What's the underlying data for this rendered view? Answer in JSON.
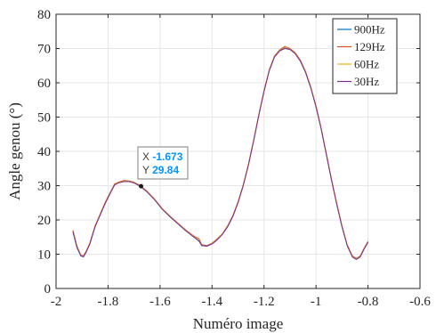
{
  "chart_data": {
    "type": "line",
    "title": "",
    "xlabel": "Numéro image",
    "ylabel": "Angle genou (°)",
    "xlim": [
      -2,
      -0.6
    ],
    "ylim": [
      0,
      80
    ],
    "x_ticks": [
      -2,
      -1.8,
      -1.6,
      -1.4,
      -1.2,
      -1,
      -0.8,
      -0.6
    ],
    "x_tick_labels": [
      "-2",
      "-1.8",
      "-1.6",
      "-1.4",
      "-1.2",
      "-1",
      "-0.8",
      "-0.6"
    ],
    "y_ticks": [
      0,
      10,
      20,
      30,
      40,
      50,
      60,
      70,
      80
    ],
    "y_tick_labels": [
      "0",
      "10",
      "20",
      "30",
      "40",
      "50",
      "60",
      "70",
      "80"
    ],
    "grid": true,
    "legend_position": "top-right",
    "series": [
      {
        "name": "900Hz",
        "color": "#0072BD",
        "points": [
          [
            -1.935,
            16.5
          ],
          [
            -1.92,
            12
          ],
          [
            -1.905,
            9.5
          ],
          [
            -1.895,
            9.2
          ],
          [
            -1.885,
            10.5
          ],
          [
            -1.87,
            13
          ],
          [
            -1.85,
            18
          ],
          [
            -1.83,
            21.5
          ],
          [
            -1.81,
            25
          ],
          [
            -1.79,
            28
          ],
          [
            -1.775,
            30.2
          ],
          [
            -1.76,
            30.8
          ],
          [
            -1.74,
            31.2
          ],
          [
            -1.72,
            31.2
          ],
          [
            -1.7,
            30.8
          ],
          [
            -1.68,
            30
          ],
          [
            -1.673,
            29.84
          ],
          [
            -1.65,
            28.2
          ],
          [
            -1.62,
            25.8
          ],
          [
            -1.59,
            23
          ],
          [
            -1.56,
            20.8
          ],
          [
            -1.53,
            18.8
          ],
          [
            -1.5,
            16.8
          ],
          [
            -1.47,
            15
          ],
          [
            -1.45,
            13.8
          ],
          [
            -1.44,
            12.5
          ],
          [
            -1.42,
            12.3
          ],
          [
            -1.4,
            13
          ],
          [
            -1.38,
            14.2
          ],
          [
            -1.36,
            15.8
          ],
          [
            -1.34,
            18
          ],
          [
            -1.32,
            21
          ],
          [
            -1.3,
            25
          ],
          [
            -1.28,
            30
          ],
          [
            -1.26,
            36
          ],
          [
            -1.24,
            43
          ],
          [
            -1.22,
            50.5
          ],
          [
            -1.2,
            57.5
          ],
          [
            -1.18,
            63.5
          ],
          [
            -1.16,
            67.5
          ],
          [
            -1.14,
            69.3
          ],
          [
            -1.12,
            70
          ],
          [
            -1.1,
            69.7
          ],
          [
            -1.08,
            68.5
          ],
          [
            -1.06,
            66.3
          ],
          [
            -1.04,
            63
          ],
          [
            -1.02,
            58.5
          ],
          [
            -1.0,
            53
          ],
          [
            -0.98,
            46.5
          ],
          [
            -0.96,
            39
          ],
          [
            -0.94,
            31.5
          ],
          [
            -0.92,
            24.5
          ],
          [
            -0.9,
            18
          ],
          [
            -0.88,
            12.5
          ],
          [
            -0.86,
            9.2
          ],
          [
            -0.845,
            8.5
          ],
          [
            -0.83,
            9.2
          ],
          [
            -0.815,
            11.5
          ],
          [
            -0.8,
            13.5
          ]
        ]
      },
      {
        "name": "129Hz",
        "color": "#D95319",
        "points": [
          [
            -1.935,
            17
          ],
          [
            -1.92,
            12.5
          ],
          [
            -1.905,
            9.8
          ],
          [
            -1.895,
            9.5
          ],
          [
            -1.885,
            10.8
          ],
          [
            -1.87,
            13.3
          ],
          [
            -1.85,
            18.3
          ],
          [
            -1.83,
            21.8
          ],
          [
            -1.81,
            25.3
          ],
          [
            -1.79,
            28.3
          ],
          [
            -1.775,
            30.5
          ],
          [
            -1.76,
            31
          ],
          [
            -1.74,
            31.5
          ],
          [
            -1.72,
            31.4
          ],
          [
            -1.7,
            31
          ],
          [
            -1.68,
            30.2
          ],
          [
            -1.65,
            28.4
          ],
          [
            -1.62,
            26
          ],
          [
            -1.59,
            23.2
          ],
          [
            -1.56,
            21
          ],
          [
            -1.53,
            19
          ],
          [
            -1.5,
            17
          ],
          [
            -1.47,
            15.3
          ],
          [
            -1.45,
            14.5
          ],
          [
            -1.44,
            12.8
          ],
          [
            -1.42,
            12.5
          ],
          [
            -1.4,
            13.2
          ],
          [
            -1.38,
            14.5
          ],
          [
            -1.36,
            16
          ],
          [
            -1.34,
            18.3
          ],
          [
            -1.32,
            21.3
          ],
          [
            -1.3,
            25.3
          ],
          [
            -1.28,
            30.3
          ],
          [
            -1.26,
            36.3
          ],
          [
            -1.24,
            43.3
          ],
          [
            -1.22,
            50.8
          ],
          [
            -1.2,
            57.8
          ],
          [
            -1.18,
            63.8
          ],
          [
            -1.16,
            67.8
          ],
          [
            -1.14,
            69.6
          ],
          [
            -1.12,
            70.6
          ],
          [
            -1.1,
            70
          ],
          [
            -1.08,
            68.8
          ],
          [
            -1.06,
            66.6
          ],
          [
            -1.04,
            63.3
          ],
          [
            -1.02,
            58.8
          ],
          [
            -1.0,
            53.3
          ],
          [
            -0.98,
            46.8
          ],
          [
            -0.96,
            39.3
          ],
          [
            -0.94,
            31.8
          ],
          [
            -0.92,
            24.8
          ],
          [
            -0.9,
            18.3
          ],
          [
            -0.88,
            12.8
          ],
          [
            -0.86,
            9.5
          ],
          [
            -0.845,
            8.8
          ],
          [
            -0.83,
            9.5
          ],
          [
            -0.815,
            11.8
          ],
          [
            -0.8,
            13.8
          ]
        ]
      },
      {
        "name": "60Hz",
        "color": "#EDB120",
        "points": [
          [
            -1.935,
            16.8
          ],
          [
            -1.92,
            12.3
          ],
          [
            -1.905,
            9.7
          ],
          [
            -1.895,
            9.4
          ],
          [
            -1.885,
            10.6
          ],
          [
            -1.87,
            13.1
          ],
          [
            -1.85,
            18.1
          ],
          [
            -1.83,
            21.6
          ],
          [
            -1.81,
            25.1
          ],
          [
            -1.79,
            28.1
          ],
          [
            -1.775,
            30.3
          ],
          [
            -1.76,
            30.9
          ],
          [
            -1.74,
            31.3
          ],
          [
            -1.72,
            31.3
          ],
          [
            -1.7,
            30.9
          ],
          [
            -1.68,
            30.1
          ],
          [
            -1.65,
            28.3
          ],
          [
            -1.62,
            25.9
          ],
          [
            -1.59,
            23.1
          ],
          [
            -1.56,
            20.9
          ],
          [
            -1.53,
            18.9
          ],
          [
            -1.5,
            16.9
          ],
          [
            -1.47,
            15.1
          ],
          [
            -1.45,
            14
          ],
          [
            -1.44,
            12.6
          ],
          [
            -1.42,
            12.4
          ],
          [
            -1.4,
            13.1
          ],
          [
            -1.38,
            14.3
          ],
          [
            -1.36,
            15.9
          ],
          [
            -1.34,
            18.1
          ],
          [
            -1.32,
            21.1
          ],
          [
            -1.3,
            25.1
          ],
          [
            -1.28,
            30.1
          ],
          [
            -1.26,
            36.1
          ],
          [
            -1.24,
            43.1
          ],
          [
            -1.22,
            50.6
          ],
          [
            -1.2,
            57.6
          ],
          [
            -1.18,
            63.6
          ],
          [
            -1.16,
            67.6
          ],
          [
            -1.14,
            69.4
          ],
          [
            -1.12,
            70.2
          ],
          [
            -1.1,
            69.8
          ],
          [
            -1.08,
            68.6
          ],
          [
            -1.06,
            66.4
          ],
          [
            -1.04,
            63.1
          ],
          [
            -1.02,
            58.6
          ],
          [
            -1.0,
            53.1
          ],
          [
            -0.98,
            46.6
          ],
          [
            -0.96,
            39.1
          ],
          [
            -0.94,
            31.6
          ],
          [
            -0.92,
            24.6
          ],
          [
            -0.9,
            18.1
          ],
          [
            -0.88,
            12.6
          ],
          [
            -0.86,
            9.3
          ],
          [
            -0.845,
            8.6
          ],
          [
            -0.83,
            9.3
          ],
          [
            -0.815,
            11.6
          ],
          [
            -0.8,
            13.6
          ]
        ]
      },
      {
        "name": "30Hz",
        "color": "#7E2F8E",
        "points": [
          [
            -1.935,
            16.6
          ],
          [
            -1.92,
            12.1
          ],
          [
            -1.905,
            9.6
          ],
          [
            -1.895,
            9.3
          ],
          [
            -1.885,
            10.5
          ],
          [
            -1.87,
            13
          ],
          [
            -1.85,
            18
          ],
          [
            -1.83,
            21.5
          ],
          [
            -1.81,
            25
          ],
          [
            -1.79,
            28
          ],
          [
            -1.775,
            30.2
          ],
          [
            -1.76,
            30.8
          ],
          [
            -1.74,
            31.2
          ],
          [
            -1.72,
            31.2
          ],
          [
            -1.7,
            30.8
          ],
          [
            -1.68,
            30
          ],
          [
            -1.65,
            28.2
          ],
          [
            -1.62,
            25.8
          ],
          [
            -1.59,
            23
          ],
          [
            -1.56,
            20.8
          ],
          [
            -1.53,
            18.8
          ],
          [
            -1.5,
            16.8
          ],
          [
            -1.47,
            15
          ],
          [
            -1.45,
            13.9
          ],
          [
            -1.44,
            12.6
          ],
          [
            -1.42,
            12.4
          ],
          [
            -1.4,
            13
          ],
          [
            -1.38,
            14.2
          ],
          [
            -1.36,
            15.8
          ],
          [
            -1.34,
            18
          ],
          [
            -1.32,
            21
          ],
          [
            -1.3,
            25
          ],
          [
            -1.28,
            30
          ],
          [
            -1.26,
            36
          ],
          [
            -1.24,
            43
          ],
          [
            -1.22,
            50.5
          ],
          [
            -1.2,
            57.5
          ],
          [
            -1.18,
            63.5
          ],
          [
            -1.16,
            67.5
          ],
          [
            -1.14,
            69.3
          ],
          [
            -1.12,
            70.1
          ],
          [
            -1.1,
            69.7
          ],
          [
            -1.08,
            68.5
          ],
          [
            -1.06,
            66.3
          ],
          [
            -1.04,
            63
          ],
          [
            -1.02,
            58.5
          ],
          [
            -1.0,
            53
          ],
          [
            -0.98,
            46.5
          ],
          [
            -0.96,
            39
          ],
          [
            -0.94,
            31.5
          ],
          [
            -0.92,
            24.5
          ],
          [
            -0.9,
            18
          ],
          [
            -0.88,
            12.5
          ],
          [
            -0.86,
            9.2
          ],
          [
            -0.845,
            8.5
          ],
          [
            -0.83,
            9.2
          ],
          [
            -0.815,
            11.5
          ],
          [
            -0.8,
            13.5
          ]
        ]
      }
    ],
    "datatip": {
      "x": -1.673,
      "y": 29.84,
      "x_label": "X",
      "y_label": "Y",
      "x_text": "-1.673",
      "y_text": "29.84",
      "value_color": "#0096FF"
    }
  }
}
